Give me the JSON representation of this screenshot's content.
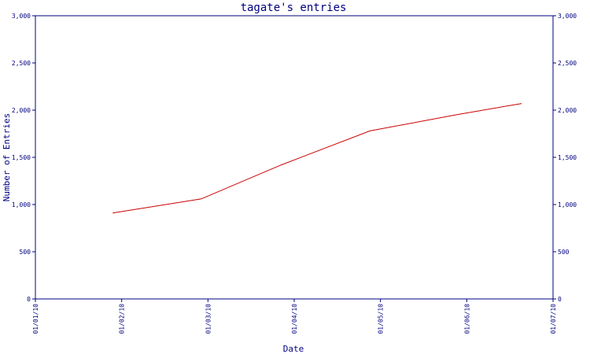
{
  "chart_data": {
    "type": "line",
    "title": "tagate's entries",
    "xlabel": "Date",
    "ylabel": "Number of Entries",
    "x_ticks": [
      "01/01/10",
      "01/02/10",
      "01/03/10",
      "01/04/10",
      "01/05/10",
      "01/06/10",
      "01/07/10"
    ],
    "x_range": [
      "2010-01-01",
      "2010-07-01"
    ],
    "y_ticks": [
      "0",
      "500",
      "1,000",
      "1,500",
      "2,000",
      "2,500",
      "3,000"
    ],
    "ylim": [
      0,
      3000
    ],
    "grid": false,
    "colors": {
      "axis": "#000080",
      "line": "#cc0000"
    },
    "series": [
      {
        "x": [
          "2010-01-28",
          "2010-02-28",
          "2010-03-28",
          "2010-04-28",
          "2010-05-28",
          "2010-06-20"
        ],
        "values": [
          910,
          1060,
          1420,
          1780,
          1950,
          2070
        ]
      }
    ]
  }
}
